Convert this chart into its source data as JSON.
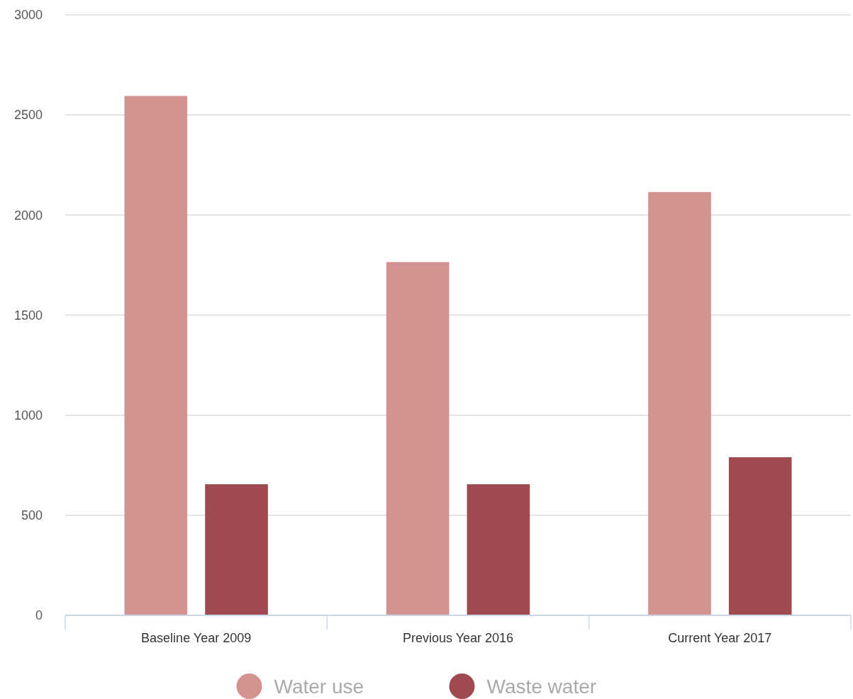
{
  "chart_data": {
    "type": "bar",
    "categories": [
      "Baseline Year 2009",
      "Previous Year 2016",
      "Current Year 2017"
    ],
    "series": [
      {
        "name": "Water use",
        "color": "#d39391",
        "values": [
          2595,
          1765,
          2115
        ]
      },
      {
        "name": "Waste water",
        "color": "#9e4a50",
        "values": [
          655,
          655,
          790
        ]
      }
    ],
    "ylim": [
      0,
      3000
    ],
    "yticks": [
      0,
      500,
      1000,
      1500,
      2000,
      2500,
      3000
    ],
    "grid": "y",
    "legend": "bottom"
  }
}
